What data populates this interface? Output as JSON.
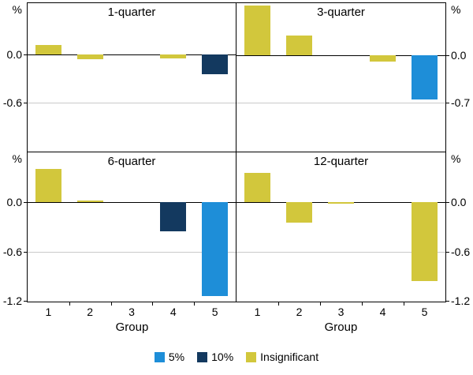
{
  "chart_data": {
    "type": "bar",
    "categories": [
      "1",
      "2",
      "3",
      "4",
      "5"
    ],
    "xlabel": "Group",
    "grid": "horizontal-on",
    "legend_position": "bottom-center",
    "legend": [
      {
        "key": "sig5",
        "label": "5%",
        "color": "#1e8ed8"
      },
      {
        "key": "sig10",
        "label": "10%",
        "color": "#13395f"
      },
      {
        "key": "insig",
        "label": "Insignificant",
        "color": "#d2c73c"
      }
    ],
    "panels": [
      {
        "title": "1-quarter",
        "unit": "%",
        "axis_side": "left",
        "ylim": [
          -1.22,
          0.65
        ],
        "yticks": [
          {
            "v": 0,
            "label": "0.0"
          },
          {
            "v": -0.6,
            "label": "-0.6"
          }
        ],
        "values": [
          0.12,
          -0.06,
          0,
          -0.05,
          -0.25
        ],
        "significance": [
          "insig",
          "insig",
          "insig",
          "insig",
          "sig10"
        ]
      },
      {
        "title": "3-quarter",
        "unit": "%",
        "axis_side": "right",
        "ylim": [
          -1.42,
          0.76
        ],
        "yticks": [
          {
            "v": 0,
            "label": "0.0"
          },
          {
            "v": -0.7,
            "label": "-0.7"
          }
        ],
        "values": [
          0.72,
          0.28,
          0,
          -0.1,
          -0.65
        ],
        "significance": [
          "insig",
          "insig",
          "insig",
          "insig",
          "sig5"
        ]
      },
      {
        "title": "6-quarter",
        "unit": "%",
        "axis_side": "left",
        "ylim": [
          -1.2,
          0.6
        ],
        "yticks": [
          {
            "v": 0,
            "label": "0.0"
          },
          {
            "v": -0.6,
            "label": "-0.6"
          },
          {
            "v": -1.2,
            "label": "-1.2"
          }
        ],
        "values": [
          0.4,
          0.02,
          0,
          -0.35,
          -1.13
        ],
        "significance": [
          "insig",
          "insig",
          "insig",
          "sig10",
          "sig5"
        ]
      },
      {
        "title": "12-quarter",
        "unit": "%",
        "axis_side": "right",
        "ylim": [
          -1.2,
          0.6
        ],
        "yticks": [
          {
            "v": 0,
            "label": "0.0"
          },
          {
            "v": -0.6,
            "label": "-0.6"
          },
          {
            "v": -1.2,
            "label": "-1.2"
          }
        ],
        "values": [
          0.35,
          -0.25,
          -0.02,
          0,
          -0.95
        ],
        "significance": [
          "insig",
          "insig",
          "insig",
          "insig",
          "insig"
        ]
      }
    ]
  }
}
